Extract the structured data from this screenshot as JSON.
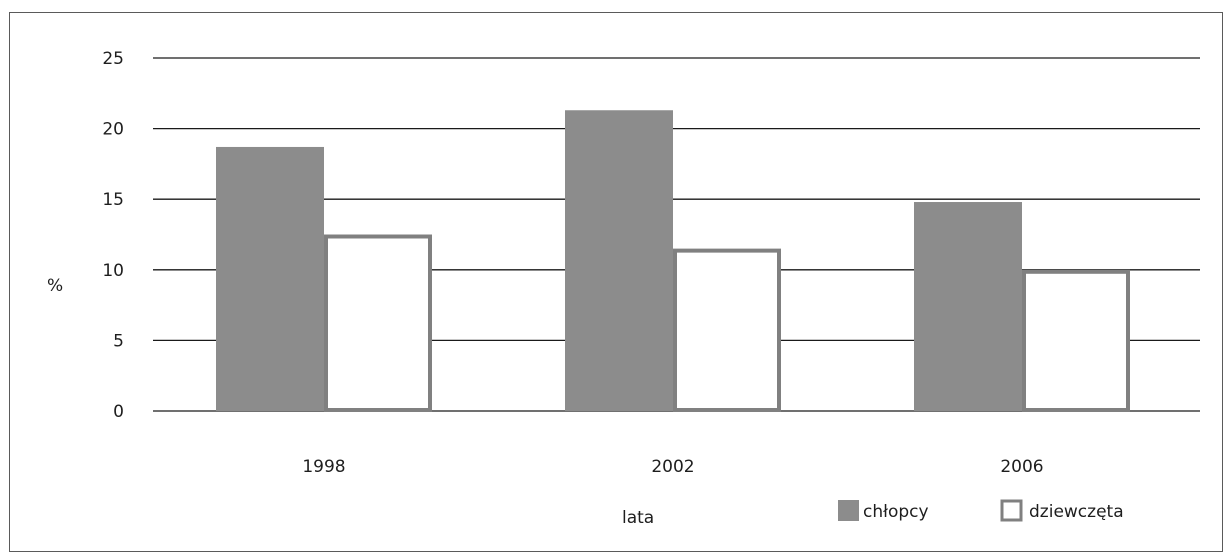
{
  "chart_data": {
    "type": "bar",
    "title": "",
    "xlabel": "lata",
    "ylabel": "%",
    "ylim": [
      0,
      25
    ],
    "yticks": [
      "0",
      "5",
      "10",
      "15",
      "20",
      "25"
    ],
    "grid": true,
    "legend_position": "bottom-right",
    "categories": [
      "1998",
      "2002",
      "2006"
    ],
    "series": [
      {
        "name": "chłopcy",
        "values": [
          18.7,
          21.3,
          14.8
        ],
        "fill": "#8c8c8c",
        "stroke": "#8c8c8c"
      },
      {
        "name": "dziewczęta",
        "values": [
          12.5,
          11.5,
          10.0
        ],
        "fill": "#ffffff",
        "stroke": "#808080"
      }
    ]
  }
}
